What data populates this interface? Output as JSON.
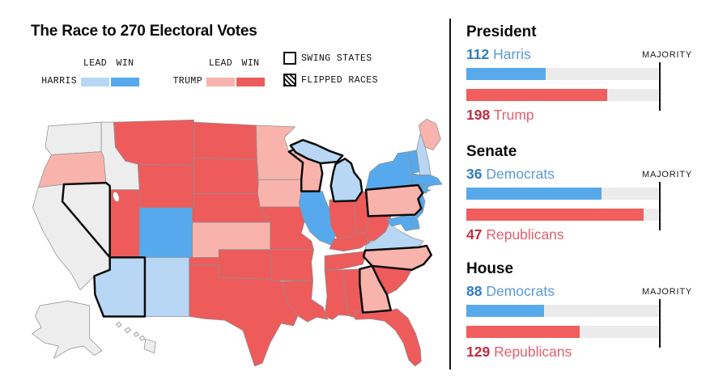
{
  "title": "The Race to 270 Electoral Votes",
  "legend": {
    "lead_label": "LEAD",
    "win_label": "WIN",
    "harris_label": "HARRIS",
    "trump_label": "TRUMP",
    "swing_label": "SWING STATES",
    "flipped_label": "FLIPPED RACES"
  },
  "colors": {
    "harris_win": "#56a9ec",
    "harris_lead": "#b7d7f5",
    "trump_win": "#ee5b5b",
    "trump_lead": "#f8b3ac",
    "none": "#ededed",
    "bar_track": "#ebebeb",
    "bar_dem": "#58a9ea",
    "bar_rep": "#f05e5e",
    "dem_value_text": "#2e7cc4",
    "dem_name_text": "#5b9ad6",
    "rep_value_text": "#c32b43",
    "rep_name_text": "#e2606e",
    "swing_outline": "#0c0c0c",
    "state_border": "#8f8f8f"
  },
  "panel": {
    "sections": [
      {
        "heading": "President",
        "majority_label": "MAJORITY",
        "rows": [
          {
            "value": "112",
            "label": "Harris",
            "party": "dem"
          },
          {
            "value": "198",
            "label": "Trump",
            "party": "rep"
          }
        ]
      },
      {
        "heading": "Senate",
        "majority_label": "MAJORITY",
        "rows": [
          {
            "value": "36",
            "label": "Democrats",
            "party": "dem"
          },
          {
            "value": "47",
            "label": "Republicans",
            "party": "rep"
          }
        ]
      },
      {
        "heading": "House",
        "majority_label": "MAJORITY",
        "rows": [
          {
            "value": "88",
            "label": "Democrats",
            "party": "dem"
          },
          {
            "value": "129",
            "label": "Republicans",
            "party": "rep"
          }
        ]
      }
    ]
  },
  "chart_data": [
    {
      "type": "bar",
      "title": "President",
      "orientation": "horizontal",
      "categories": [
        "Harris",
        "Trump"
      ],
      "values": [
        112,
        198
      ],
      "xlim": [
        0,
        270
      ],
      "majority": 270,
      "annotation": "MAJORITY",
      "series_colors": [
        "#58a9ea",
        "#f05e5e"
      ]
    },
    {
      "type": "bar",
      "title": "Senate",
      "orientation": "horizontal",
      "categories": [
        "Democrats",
        "Republicans"
      ],
      "values": [
        36,
        47
      ],
      "xlim": [
        0,
        51
      ],
      "majority": 51,
      "annotation": "MAJORITY",
      "series_colors": [
        "#58a9ea",
        "#f05e5e"
      ]
    },
    {
      "type": "bar",
      "title": "House",
      "orientation": "horizontal",
      "categories": [
        "Democrats",
        "Republicans"
      ],
      "values": [
        88,
        129
      ],
      "xlim": [
        0,
        218
      ],
      "majority": 218,
      "annotation": "MAJORITY",
      "series_colors": [
        "#58a9ea",
        "#f05e5e"
      ]
    }
  ],
  "map": {
    "states": [
      {
        "id": "WA",
        "name": "Washington",
        "status": "none",
        "swing": false
      },
      {
        "id": "OR",
        "name": "Oregon",
        "status": "trump-lead",
        "swing": false
      },
      {
        "id": "CA",
        "name": "California",
        "status": "none",
        "swing": false
      },
      {
        "id": "ID",
        "name": "Idaho",
        "status": "none",
        "swing": false
      },
      {
        "id": "NV",
        "name": "Nevada",
        "status": "none",
        "swing": true
      },
      {
        "id": "MT",
        "name": "Montana",
        "status": "trump-win",
        "swing": false
      },
      {
        "id": "WY",
        "name": "Wyoming",
        "status": "trump-win",
        "swing": false
      },
      {
        "id": "UT",
        "name": "Utah",
        "status": "trump-win",
        "swing": false
      },
      {
        "id": "CO",
        "name": "Colorado",
        "status": "harris-win",
        "swing": false
      },
      {
        "id": "AZ",
        "name": "Arizona",
        "status": "harris-lead",
        "swing": true
      },
      {
        "id": "NM",
        "name": "New Mexico",
        "status": "harris-lead",
        "swing": false
      },
      {
        "id": "ND",
        "name": "North Dakota",
        "status": "trump-win",
        "swing": false
      },
      {
        "id": "SD",
        "name": "South Dakota",
        "status": "trump-win",
        "swing": false
      },
      {
        "id": "NE",
        "name": "Nebraska",
        "status": "trump-win",
        "swing": false
      },
      {
        "id": "KS",
        "name": "Kansas",
        "status": "trump-lead",
        "swing": false
      },
      {
        "id": "OK",
        "name": "Oklahoma",
        "status": "trump-win",
        "swing": false
      },
      {
        "id": "TX",
        "name": "Texas",
        "status": "trump-win",
        "swing": false
      },
      {
        "id": "MN",
        "name": "Minnesota",
        "status": "trump-lead",
        "swing": false
      },
      {
        "id": "IA",
        "name": "Iowa",
        "status": "trump-lead",
        "swing": false
      },
      {
        "id": "MO",
        "name": "Missouri",
        "status": "trump-win",
        "swing": false
      },
      {
        "id": "AR",
        "name": "Arkansas",
        "status": "trump-win",
        "swing": false
      },
      {
        "id": "LA",
        "name": "Louisiana",
        "status": "trump-win",
        "swing": false
      },
      {
        "id": "WI",
        "name": "Wisconsin",
        "status": "trump-lead",
        "swing": true
      },
      {
        "id": "MI",
        "name": "Michigan",
        "status": "harris-lead",
        "swing": true
      },
      {
        "id": "IL",
        "name": "Illinois",
        "status": "harris-win",
        "swing": false
      },
      {
        "id": "IN",
        "name": "Indiana",
        "status": "trump-win",
        "swing": false
      },
      {
        "id": "OH",
        "name": "Ohio",
        "status": "trump-win",
        "swing": false
      },
      {
        "id": "KY",
        "name": "Kentucky",
        "status": "trump-win",
        "swing": false
      },
      {
        "id": "TN",
        "name": "Tennessee",
        "status": "trump-win",
        "swing": false
      },
      {
        "id": "MS",
        "name": "Mississippi",
        "status": "trump-win",
        "swing": false
      },
      {
        "id": "AL",
        "name": "Alabama",
        "status": "trump-win",
        "swing": false
      },
      {
        "id": "GA",
        "name": "Georgia",
        "status": "trump-lead",
        "swing": true
      },
      {
        "id": "FL",
        "name": "Florida",
        "status": "trump-win",
        "swing": false
      },
      {
        "id": "SC",
        "name": "South Carolina",
        "status": "trump-win",
        "swing": false
      },
      {
        "id": "NC",
        "name": "North Carolina",
        "status": "trump-lead",
        "swing": true
      },
      {
        "id": "VA",
        "name": "Virginia",
        "status": "harris-lead",
        "swing": false
      },
      {
        "id": "WV",
        "name": "West Virginia",
        "status": "trump-win",
        "swing": false
      },
      {
        "id": "PA",
        "name": "Pennsylvania",
        "status": "trump-lead",
        "swing": true
      },
      {
        "id": "NY",
        "name": "New York",
        "status": "harris-win",
        "swing": false
      },
      {
        "id": "NJ",
        "name": "New Jersey",
        "status": "harris-win",
        "swing": false
      },
      {
        "id": "DE",
        "name": "Delaware",
        "status": "harris-win",
        "swing": false
      },
      {
        "id": "MD",
        "name": "Maryland",
        "status": "harris-win",
        "swing": false
      },
      {
        "id": "VT",
        "name": "Vermont",
        "status": "harris-win",
        "swing": false
      },
      {
        "id": "NH",
        "name": "New Hampshire",
        "status": "harris-lead",
        "swing": false
      },
      {
        "id": "ME",
        "name": "Maine",
        "status": "trump-lead",
        "swing": false
      },
      {
        "id": "MA",
        "name": "Massachusetts",
        "status": "harris-win",
        "swing": false
      },
      {
        "id": "CT",
        "name": "Connecticut",
        "status": "harris-win",
        "swing": false
      },
      {
        "id": "RI",
        "name": "Rhode Island",
        "status": "harris-win",
        "swing": false
      },
      {
        "id": "AK",
        "name": "Alaska",
        "status": "none",
        "swing": false
      },
      {
        "id": "HI",
        "name": "Hawaii",
        "status": "none",
        "swing": false
      }
    ]
  }
}
